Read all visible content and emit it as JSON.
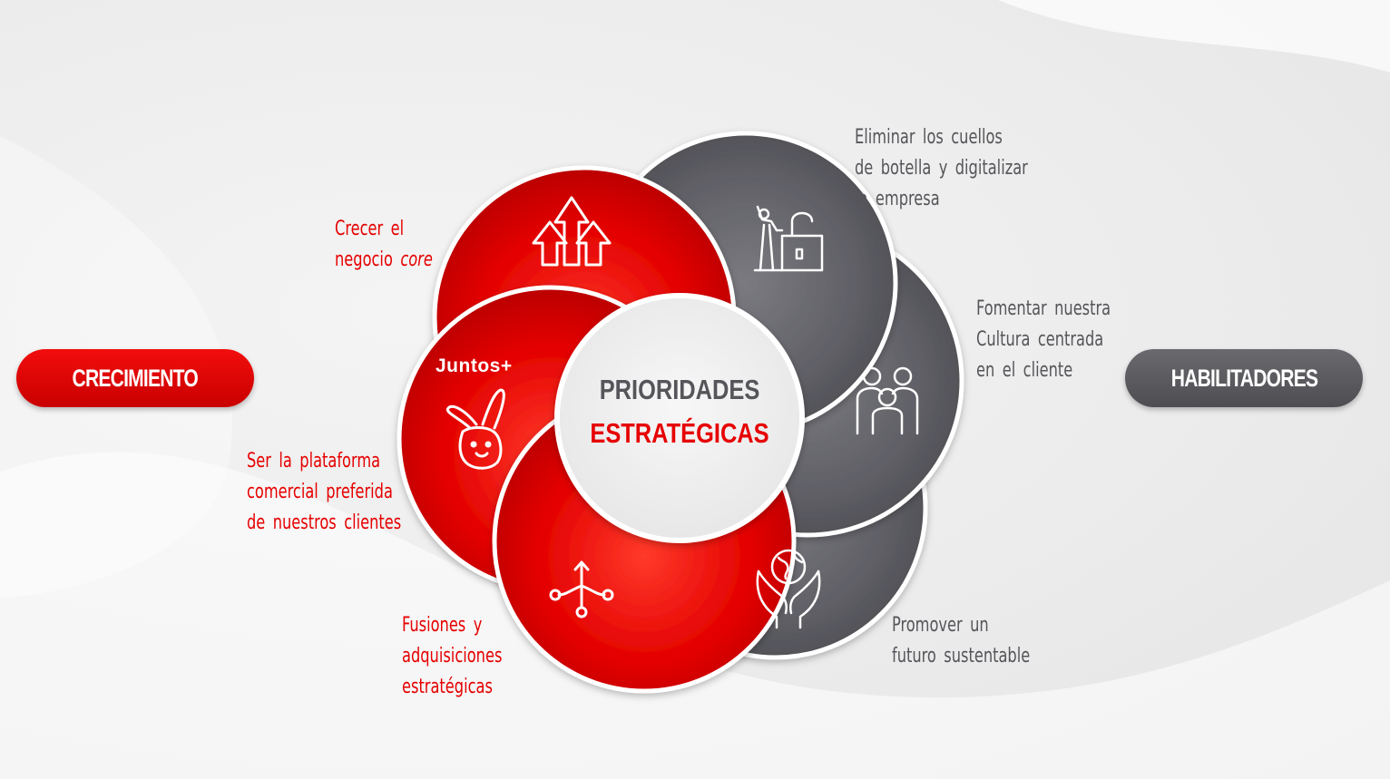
{
  "left_pill": {
    "label": "CRECIMIENTO",
    "color": "#e60000"
  },
  "right_pill": {
    "label": "HABILITADORES",
    "color": "#58585c"
  },
  "center": {
    "line1": "PRIORIDADES",
    "line2": "ESTRATÉGICAS"
  },
  "juntos_label": "Juntos+",
  "red_priorities": [
    {
      "lines": [
        "Crecer el",
        "negocio"
      ],
      "emphasis": "core",
      "icon": "arrows-up-icon"
    },
    {
      "lines": [
        "Ser la plataforma",
        "comercial preferida",
        "de nuestros clientes"
      ],
      "icon": "rabbit-icon"
    },
    {
      "lines": [
        "Fusiones y",
        "adquisiciones",
        "estratégicas"
      ],
      "icon": "branch-icon"
    }
  ],
  "gray_priorities": [
    {
      "lines": [
        "Eliminar los cuellos",
        "de botella y digitalizar",
        "la empresa"
      ],
      "icon": "unlock-person-icon"
    },
    {
      "lines": [
        "Fomentar nuestra",
        "Cultura centrada",
        "en el cliente"
      ],
      "icon": "people-icon"
    },
    {
      "lines": [
        "Promover un",
        "futuro sustentable"
      ],
      "icon": "globe-hands-icon"
    }
  ],
  "colors": {
    "red": "#e60000",
    "gray": "#58585c",
    "text_gray": "#55555a"
  }
}
